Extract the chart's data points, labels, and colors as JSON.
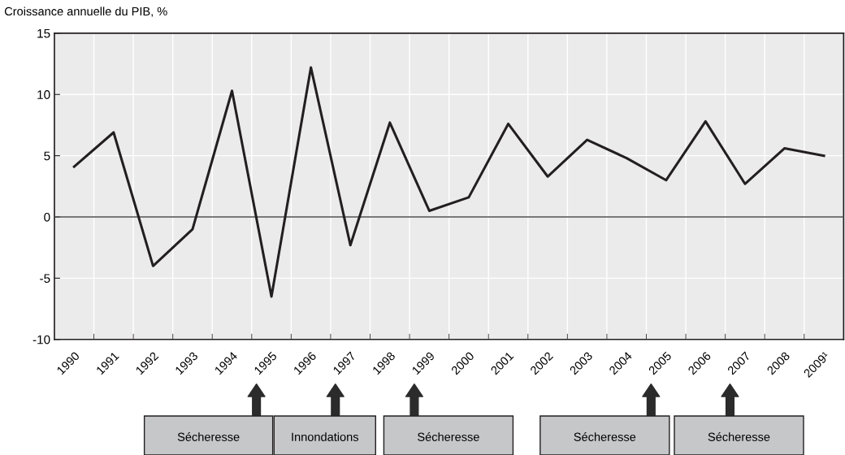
{
  "chart_data": {
    "type": "line",
    "ylabel": "Croissance annuelle du PIB, %",
    "categories": [
      "1990",
      "1991",
      "1992",
      "1993",
      "1994",
      "1995",
      "1996",
      "1997",
      "1998",
      "1999",
      "2000",
      "2001",
      "2002",
      "2003",
      "2004",
      "2005",
      "2006",
      "2007",
      "2008",
      "2009¹"
    ],
    "series": [
      {
        "color": "#231f20",
        "values": [
          4.1,
          6.9,
          -4.0,
          -1.0,
          10.3,
          -6.5,
          12.2,
          -2.3,
          7.7,
          0.5,
          1.6,
          7.6,
          3.3,
          6.3,
          4.8,
          3.0,
          7.8,
          2.7,
          5.6,
          5.0
        ]
      }
    ],
    "ylim": [
      -10,
      15
    ],
    "yticks": [
      -10,
      -5,
      0,
      5,
      10,
      15
    ],
    "grid": true,
    "marker": "none",
    "line_style": "solid",
    "ref_lines": [
      {
        "axis": "y",
        "value": 0,
        "color": "#4d4d4d"
      }
    ],
    "annotations": [
      "Sécheresse",
      "Innondations",
      "Sécheresse",
      "Sécheresse",
      "Sécheresse"
    ]
  }
}
